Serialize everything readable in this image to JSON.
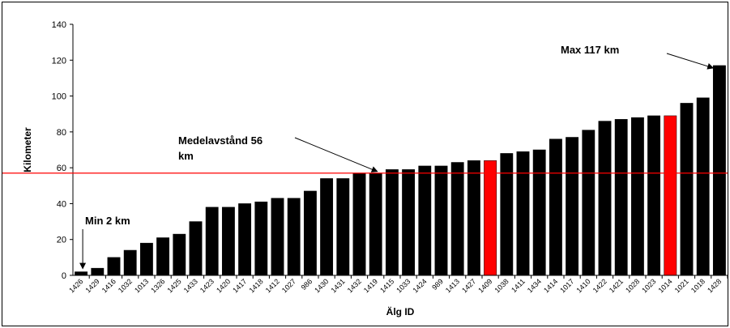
{
  "chart_data": {
    "type": "bar",
    "xlabel": "Älg ID",
    "ylabel": "Kilometer",
    "ylim": [
      0,
      140
    ],
    "yticks": [
      0,
      20,
      40,
      60,
      80,
      100,
      120,
      140
    ],
    "grid": false,
    "legend": "none",
    "bar_color": "#000000",
    "highlight_color": "#ff0000",
    "line_color": "#ff0000",
    "categories": [
      "1426",
      "1429",
      "1416",
      "1032",
      "1013",
      "1326",
      "1425",
      "1433",
      "1423",
      "1420",
      "1417",
      "1418",
      "1412",
      "1027",
      "986",
      "1430",
      "1431",
      "1432",
      "1419",
      "1415",
      "1033",
      "1424",
      "989",
      "1413",
      "1427",
      "1409",
      "1038",
      "1411",
      "1434",
      "1414",
      "1017",
      "1410",
      "1422",
      "1421",
      "1028",
      "1023",
      "1014",
      "1021",
      "1018",
      "1428"
    ],
    "values": [
      2,
      4,
      10,
      14,
      18,
      21,
      23,
      30,
      38,
      38,
      40,
      41,
      43,
      43,
      47,
      54,
      54,
      57,
      57,
      59,
      59,
      61,
      61,
      63,
      64,
      64,
      68,
      69,
      70,
      76,
      77,
      81,
      86,
      87,
      88,
      89,
      89,
      96,
      99,
      117
    ],
    "highlighted_categories": [
      "1409",
      "1014"
    ],
    "mean_line": 57,
    "annotations": [
      {
        "label": "Min 2 km",
        "text": "Min 2 km",
        "target_category": "1426"
      },
      {
        "label": "Medelavstånd 56 km",
        "text_line1": "Medelavstånd 56",
        "text_line2": "km",
        "target_category": "1419"
      },
      {
        "label": "Max 117 km",
        "text": "Max 117 km",
        "target_category": "1428"
      }
    ]
  }
}
